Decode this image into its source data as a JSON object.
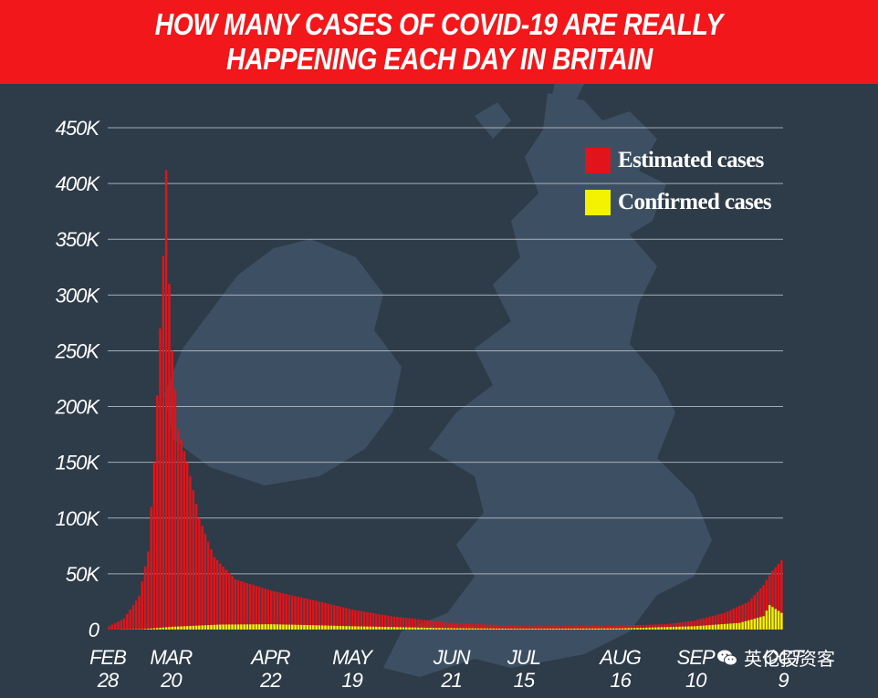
{
  "title": {
    "line1": "HOW MANY CASES OF COVID-19 ARE REALLY",
    "line2": "HAPPENING EACH DAY IN BRITAIN"
  },
  "colors": {
    "header_bg": "#f1171a",
    "background": "#2e3b48",
    "map_land": "#3d5063",
    "estimated": "#e0141a",
    "confirmed": "#f5f200",
    "grid": "#c9d1d9"
  },
  "legend": [
    {
      "label": "Estimated cases",
      "color": "#e0141a"
    },
    {
      "label": "Confirmed cases",
      "color": "#f5f200"
    }
  ],
  "watermark": {
    "icon": "wechat-icon",
    "text": "英伦投资客"
  },
  "chart_data": {
    "type": "bar",
    "title": "HOW MANY CASES OF COVID-19 ARE REALLY HAPPENING EACH DAY IN BRITAIN",
    "xlabel": "",
    "ylabel": "",
    "ylim": [
      0,
      450000
    ],
    "yticks": [
      {
        "value": 0,
        "label": "0"
      },
      {
        "value": 50000,
        "label": "50K"
      },
      {
        "value": 100000,
        "label": "100K"
      },
      {
        "value": 150000,
        "label": "150K"
      },
      {
        "value": 200000,
        "label": "200K"
      },
      {
        "value": 250000,
        "label": "250K"
      },
      {
        "value": 300000,
        "label": "300K"
      },
      {
        "value": 350000,
        "label": "350K"
      },
      {
        "value": 400000,
        "label": "400K"
      },
      {
        "value": 450000,
        "label": "450K"
      }
    ],
    "xticks": [
      {
        "month": "FEB",
        "day": "28",
        "date": "2020-02-28"
      },
      {
        "month": "MAR",
        "day": "20",
        "date": "2020-03-20"
      },
      {
        "month": "APR",
        "day": "22",
        "date": "2020-04-22"
      },
      {
        "month": "MAY",
        "day": "19",
        "date": "2020-05-19"
      },
      {
        "month": "JUN",
        "day": "21",
        "date": "2020-06-21"
      },
      {
        "month": "JUL",
        "day": "15",
        "date": "2020-07-15"
      },
      {
        "month": "AUG",
        "day": "16",
        "date": "2020-08-16"
      },
      {
        "month": "SEP",
        "day": "10",
        "date": "2020-09-10"
      },
      {
        "month": "OCT",
        "day": "9",
        "date": "2020-10-09"
      }
    ],
    "grid": true,
    "legend_position": "top-right",
    "series": [
      {
        "name": "Estimated cases",
        "color": "#e0141a",
        "points": [
          [
            "2020-02-28",
            3000
          ],
          [
            "2020-03-04",
            10000
          ],
          [
            "2020-03-09",
            30000
          ],
          [
            "2020-03-12",
            70000
          ],
          [
            "2020-03-14",
            150000
          ],
          [
            "2020-03-16",
            270000
          ],
          [
            "2020-03-17",
            335000
          ],
          [
            "2020-03-18",
            412000
          ],
          [
            "2020-03-19",
            310000
          ],
          [
            "2020-03-20",
            250000
          ],
          [
            "2020-03-22",
            180000
          ],
          [
            "2020-03-25",
            150000
          ],
          [
            "2020-03-29",
            100000
          ],
          [
            "2020-04-03",
            65000
          ],
          [
            "2020-04-10",
            45000
          ],
          [
            "2020-04-22",
            35000
          ],
          [
            "2020-05-05",
            27000
          ],
          [
            "2020-05-19",
            18000
          ],
          [
            "2020-06-01",
            12000
          ],
          [
            "2020-06-21",
            6000
          ],
          [
            "2020-07-15",
            3000
          ],
          [
            "2020-08-16",
            3500
          ],
          [
            "2020-09-01",
            5000
          ],
          [
            "2020-09-10",
            8000
          ],
          [
            "2020-09-20",
            15000
          ],
          [
            "2020-09-28",
            25000
          ],
          [
            "2020-10-03",
            40000
          ],
          [
            "2020-10-06",
            53000
          ],
          [
            "2020-10-09",
            62000
          ]
        ]
      },
      {
        "name": "Confirmed cases",
        "color": "#f5f200",
        "points": [
          [
            "2020-02-28",
            0
          ],
          [
            "2020-03-10",
            300
          ],
          [
            "2020-03-20",
            2500
          ],
          [
            "2020-04-05",
            4500
          ],
          [
            "2020-04-22",
            4800
          ],
          [
            "2020-05-05",
            4000
          ],
          [
            "2020-05-19",
            3000
          ],
          [
            "2020-06-21",
            1200
          ],
          [
            "2020-07-15",
            700
          ],
          [
            "2020-08-16",
            1000
          ],
          [
            "2020-09-10",
            3000
          ],
          [
            "2020-09-25",
            6000
          ],
          [
            "2020-10-03",
            12000
          ],
          [
            "2020-10-05",
            22000
          ],
          [
            "2020-10-09",
            15000
          ]
        ]
      }
    ]
  }
}
